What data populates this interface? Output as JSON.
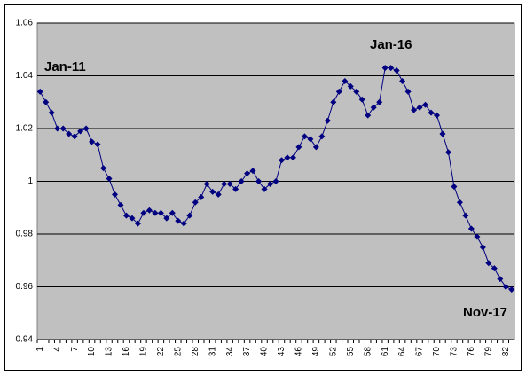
{
  "chart_data": {
    "type": "line",
    "annotations": [
      "Jan-11",
      "Jan-16",
      "Nov-17"
    ],
    "categories": [
      "1",
      null,
      null,
      "4",
      null,
      null,
      "7",
      null,
      null,
      "10",
      null,
      null,
      "13",
      null,
      null,
      "16",
      null,
      null,
      "19",
      null,
      null,
      "22",
      null,
      null,
      "25",
      null,
      null,
      "28",
      null,
      null,
      "31",
      null,
      null,
      "34",
      null,
      null,
      "37",
      null,
      null,
      "40",
      null,
      null,
      "43",
      null,
      null,
      "46",
      null,
      null,
      "49",
      null,
      null,
      "52",
      null,
      null,
      "55",
      null,
      null,
      "58",
      null,
      null,
      "61",
      null,
      null,
      "64",
      null,
      null,
      "67",
      null,
      null,
      "70",
      null,
      null,
      "73",
      null,
      null,
      "76",
      null,
      null,
      "79",
      null,
      null,
      "82",
      null
    ],
    "values": [
      1.034,
      1.03,
      1.026,
      1.02,
      1.02,
      1.018,
      1.017,
      1.019,
      1.02,
      1.015,
      1.014,
      1.005,
      1.001,
      0.995,
      0.991,
      0.987,
      0.986,
      0.984,
      0.988,
      0.989,
      0.988,
      0.988,
      0.986,
      0.988,
      0.985,
      0.984,
      0.987,
      0.992,
      0.994,
      0.999,
      0.996,
      0.995,
      0.999,
      0.999,
      0.997,
      1.0,
      1.003,
      1.004,
      1.0,
      0.997,
      0.999,
      1.0,
      1.008,
      1.009,
      1.009,
      1.013,
      1.017,
      1.016,
      1.013,
      1.017,
      1.023,
      1.03,
      1.034,
      1.038,
      1.036,
      1.034,
      1.031,
      1.025,
      1.028,
      1.03,
      1.043,
      1.043,
      1.042,
      1.038,
      1.034,
      1.027,
      1.028,
      1.029,
      1.026,
      1.025,
      1.018,
      1.011,
      0.998,
      0.992,
      0.987,
      0.982,
      0.979,
      0.975,
      0.969,
      0.967,
      0.963,
      0.96,
      0.959
    ],
    "color": "#000080",
    "ylim": [
      0.94,
      1.06
    ],
    "yticks": [
      0.94,
      0.96,
      0.98,
      1,
      1.02,
      1.04,
      1.06
    ],
    "grid": true
  }
}
